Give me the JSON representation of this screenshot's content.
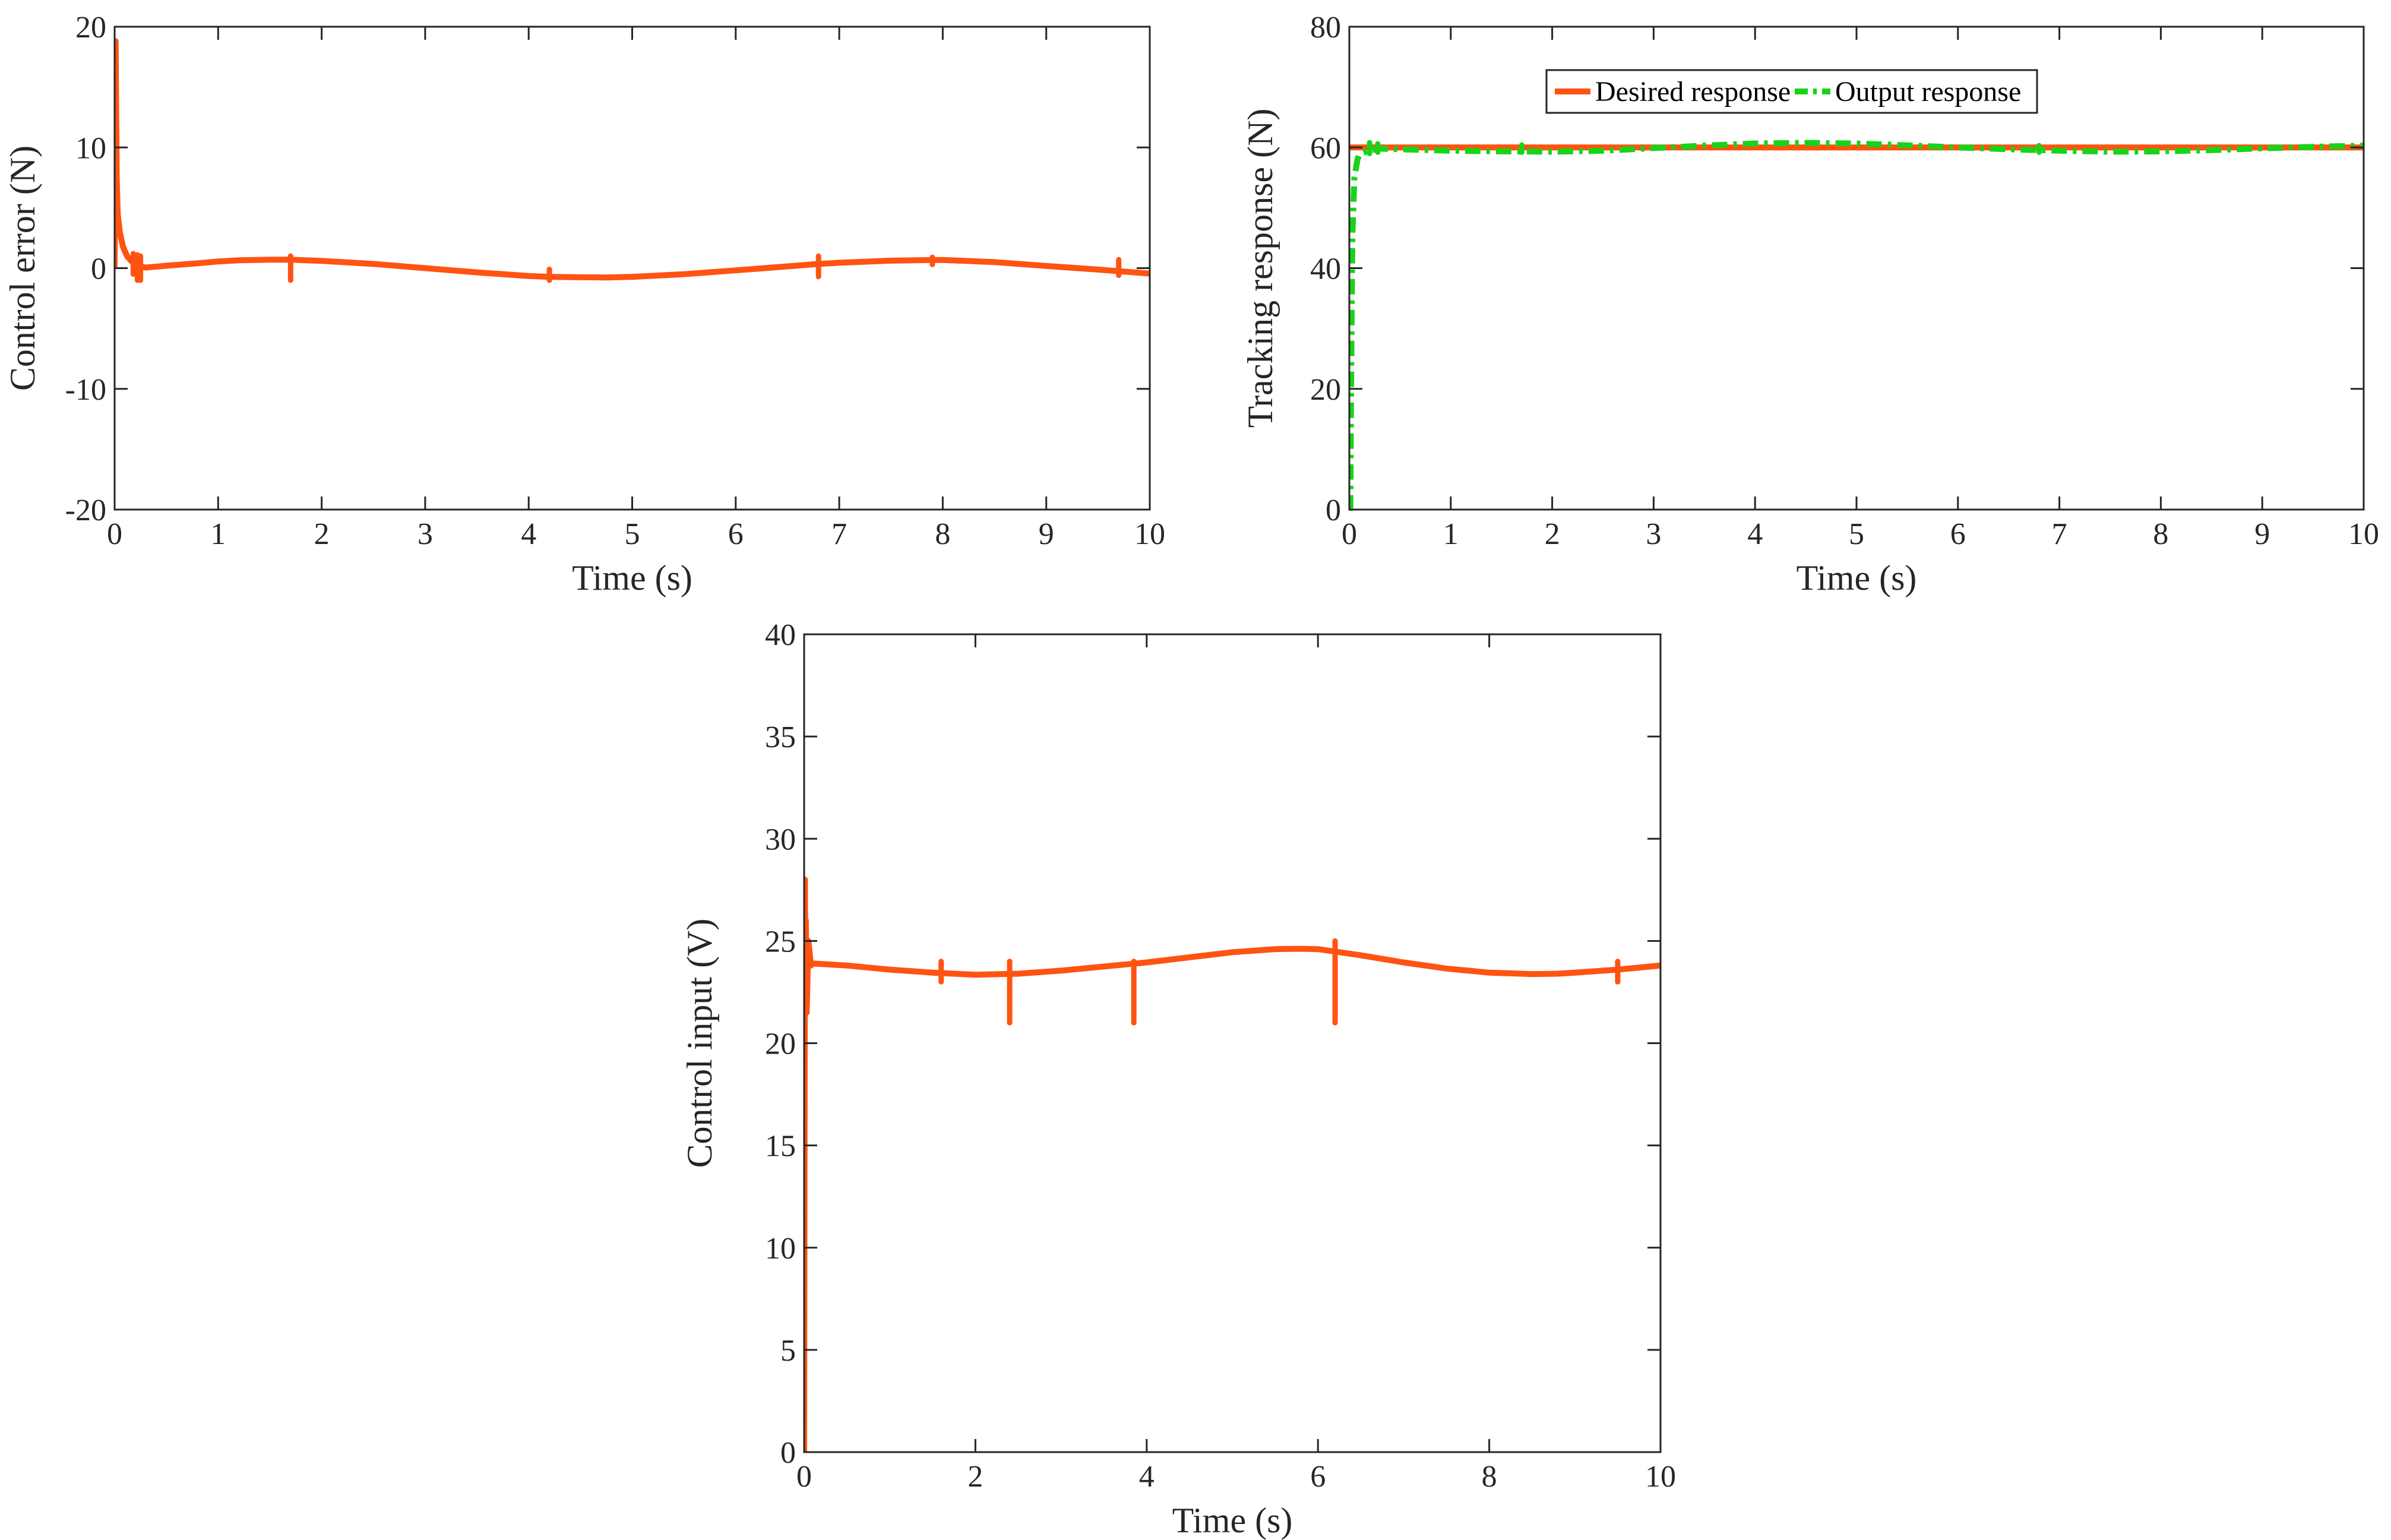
{
  "chart_data": [
    {
      "id": "error",
      "type": "line",
      "xlabel": "Time (s)",
      "ylabel": "Control error (N)",
      "xlim": [
        0,
        10
      ],
      "ylim": [
        -20,
        20
      ],
      "xticks": [
        0,
        1,
        2,
        3,
        4,
        5,
        6,
        7,
        8,
        9,
        10
      ],
      "yticks": [
        -20,
        -10,
        0,
        10,
        20
      ],
      "grid": false,
      "series": [
        {
          "name": "Control error",
          "color": "#FF5311",
          "style": "solid",
          "x": [
            0,
            0.01,
            0.02,
            0.03,
            0.05,
            0.08,
            0.12,
            0.16,
            0.2,
            0.25,
            0.3,
            0.5,
            0.8,
            1.0,
            1.2,
            1.5,
            1.7,
            2.0,
            2.5,
            3.0,
            3.5,
            4.0,
            4.2,
            4.5,
            4.75,
            5.0,
            5.5,
            6.0,
            6.5,
            6.8,
            7.0,
            7.5,
            7.9,
            8.0,
            8.5,
            9.0,
            9.5,
            9.7,
            10.0
          ],
          "y": [
            0,
            18.8,
            7.5,
            4.5,
            3.0,
            1.8,
            1.0,
            0.6,
            0.3,
            0.15,
            0.05,
            0.2,
            0.4,
            0.55,
            0.65,
            0.7,
            0.7,
            0.6,
            0.35,
            0.0,
            -0.35,
            -0.65,
            -0.72,
            -0.76,
            -0.77,
            -0.72,
            -0.5,
            -0.18,
            0.15,
            0.35,
            0.45,
            0.62,
            0.68,
            0.68,
            0.5,
            0.18,
            -0.12,
            -0.25,
            -0.45
          ]
        }
      ],
      "spikes": [
        {
          "x": 0.18,
          "y_low": -0.5,
          "y_high": 1.2
        },
        {
          "x": 0.22,
          "y_low": -1.0,
          "y_high": 1.1
        },
        {
          "x": 0.25,
          "y_low": -1.0,
          "y_high": 1.0
        },
        {
          "x": 1.7,
          "y_low": -1.0,
          "y_high": 1.0
        },
        {
          "x": 4.2,
          "y_low": -1.0,
          "y_high": -0.1
        },
        {
          "x": 6.8,
          "y_low": -0.7,
          "y_high": 1.0
        },
        {
          "x": 7.9,
          "y_low": 0.3,
          "y_high": 0.9
        },
        {
          "x": 9.7,
          "y_low": -0.6,
          "y_high": 0.7
        }
      ]
    },
    {
      "id": "tracking",
      "type": "line",
      "xlabel": "Time (s)",
      "ylabel": "Tracking response (N)",
      "xlim": [
        0,
        10
      ],
      "ylim": [
        0,
        80
      ],
      "xticks": [
        0,
        1,
        2,
        3,
        4,
        5,
        6,
        7,
        8,
        9,
        10
      ],
      "yticks": [
        0,
        20,
        40,
        60,
        80
      ],
      "grid": false,
      "legend": "top-center",
      "series": [
        {
          "name": "Desired response",
          "color": "#FF5311",
          "style": "solid",
          "x": [
            0,
            10
          ],
          "y": [
            60,
            60
          ]
        },
        {
          "name": "Output response",
          "color": "#19D319",
          "style": "dashdot",
          "x": [
            0,
            0.01,
            0.02,
            0.03,
            0.05,
            0.08,
            0.1,
            0.15,
            0.2,
            0.3,
            0.5,
            1.0,
            1.5,
            2.0,
            2.5,
            3.0,
            3.5,
            4.0,
            4.5,
            5.0,
            5.5,
            6.0,
            6.5,
            7.0,
            7.5,
            8.0,
            8.5,
            9.0,
            9.5,
            10.0
          ],
          "y": [
            0,
            0,
            25,
            45,
            55,
            58,
            58.8,
            59.2,
            59.5,
            59.8,
            59.7,
            59.45,
            59.35,
            59.3,
            59.45,
            59.9,
            60.3,
            60.65,
            60.75,
            60.65,
            60.35,
            60.0,
            59.7,
            59.45,
            59.3,
            59.35,
            59.55,
            59.85,
            60.1,
            60.3
          ]
        }
      ],
      "spikes": [
        {
          "x": 0.2,
          "y_low": 59.0,
          "y_high": 60.8
        },
        {
          "x": 0.28,
          "y_low": 59.2,
          "y_high": 60.6
        },
        {
          "x": 1.7,
          "y_low": 59.2,
          "y_high": 60.4
        },
        {
          "x": 6.8,
          "y_low": 59.2,
          "y_high": 60.3
        }
      ]
    },
    {
      "id": "input",
      "type": "line",
      "xlabel": "Time (s)",
      "ylabel": "Control input (V)",
      "xlim": [
        0,
        10
      ],
      "ylim": [
        0,
        40
      ],
      "xticks": [
        0,
        2,
        4,
        6,
        8,
        10
      ],
      "yticks": [
        0,
        5,
        10,
        15,
        20,
        25,
        30,
        35,
        40
      ],
      "grid": false,
      "series": [
        {
          "name": "Control input",
          "color": "#FF5311",
          "style": "solid",
          "x": [
            0,
            0.01,
            0.015,
            0.02,
            0.03,
            0.05,
            0.08,
            0.1,
            0.5,
            1.0,
            1.5,
            2.0,
            2.5,
            3.0,
            3.5,
            4.0,
            4.5,
            5.0,
            5.5,
            5.8,
            6.0,
            6.5,
            7.0,
            7.5,
            8.0,
            8.5,
            8.8,
            9.0,
            9.5,
            10.0
          ],
          "y": [
            0,
            28.0,
            22.0,
            26.0,
            21.5,
            25.0,
            23.8,
            23.9,
            23.8,
            23.6,
            23.45,
            23.35,
            23.4,
            23.55,
            23.75,
            23.95,
            24.2,
            24.45,
            24.6,
            24.62,
            24.6,
            24.3,
            23.95,
            23.65,
            23.45,
            23.38,
            23.4,
            23.45,
            23.6,
            23.8
          ]
        }
      ],
      "spikes": [
        {
          "x": 1.6,
          "y_low": 23.0,
          "y_high": 24.0
        },
        {
          "x": 2.4,
          "y_low": 21.0,
          "y_high": 24.0
        },
        {
          "x": 3.85,
          "y_low": 21.0,
          "y_high": 24.0
        },
        {
          "x": 6.2,
          "y_low": 21.0,
          "y_high": 25.0
        },
        {
          "x": 9.5,
          "y_low": 23.0,
          "y_high": 24.0
        }
      ]
    }
  ]
}
